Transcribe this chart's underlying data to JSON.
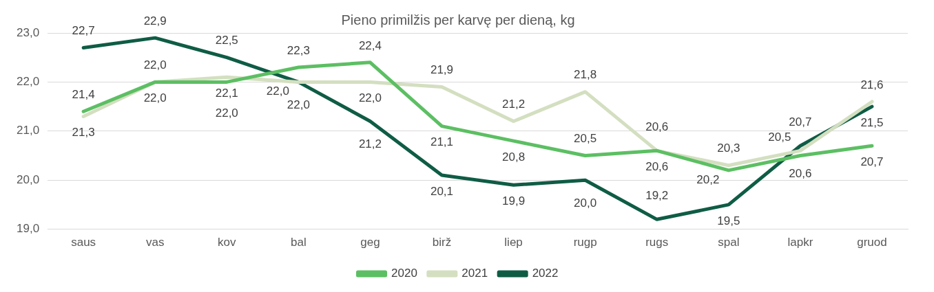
{
  "chart_data": {
    "type": "line",
    "title": "Pieno primilžis per karvę per dieną, kg",
    "categories": [
      "saus",
      "vas",
      "kov",
      "bal",
      "geg",
      "birž",
      "liep",
      "rugp",
      "rugs",
      "spal",
      "lapkr",
      "gruod"
    ],
    "series": [
      {
        "name": "2020",
        "color": "#5cbf63",
        "values": [
          21.4,
          22.0,
          22.0,
          22.3,
          22.4,
          21.1,
          20.8,
          20.5,
          20.6,
          20.2,
          20.5,
          20.7
        ],
        "value_labels": [
          "21,4",
          "22,0",
          "22,0",
          "22,3",
          "22,4",
          "21,1",
          "20,8",
          "20,5",
          "20,6",
          "20,2",
          "20,5",
          "20,7"
        ]
      },
      {
        "name": "2021",
        "color": "#d3dfc0",
        "values": [
          21.3,
          22.0,
          22.1,
          22.0,
          22.0,
          21.9,
          21.2,
          21.8,
          20.6,
          20.3,
          20.6,
          21.6
        ],
        "value_labels": [
          "21,3",
          "22,0",
          "22,1",
          "22,0",
          "22,0",
          "21,9",
          "21,2",
          "21,8",
          "20,6",
          "20,3",
          "20,6",
          "21,6"
        ]
      },
      {
        "name": "2022",
        "color": "#0f5c45",
        "values": [
          22.7,
          22.9,
          22.5,
          22.0,
          21.2,
          20.1,
          19.9,
          20.0,
          19.2,
          19.5,
          20.7,
          21.5
        ],
        "value_labels": [
          "22,7",
          "22,9",
          "22,5",
          "22,0",
          "21,2",
          "20,1",
          "19,9",
          "20,0",
          "19,2",
          "19,5",
          "20,7",
          "21,5"
        ]
      }
    ],
    "ylim": [
      19,
      23
    ],
    "yticks": [
      {
        "value": 19,
        "label": "19,0"
      },
      {
        "value": 20,
        "label": "20,0"
      },
      {
        "value": 21,
        "label": "21,0"
      },
      {
        "value": 22,
        "label": "22,0"
      },
      {
        "value": 23,
        "label": "23,0"
      }
    ],
    "grid": "y",
    "legend": "bottom",
    "marker": "none",
    "line_style": "solid"
  }
}
